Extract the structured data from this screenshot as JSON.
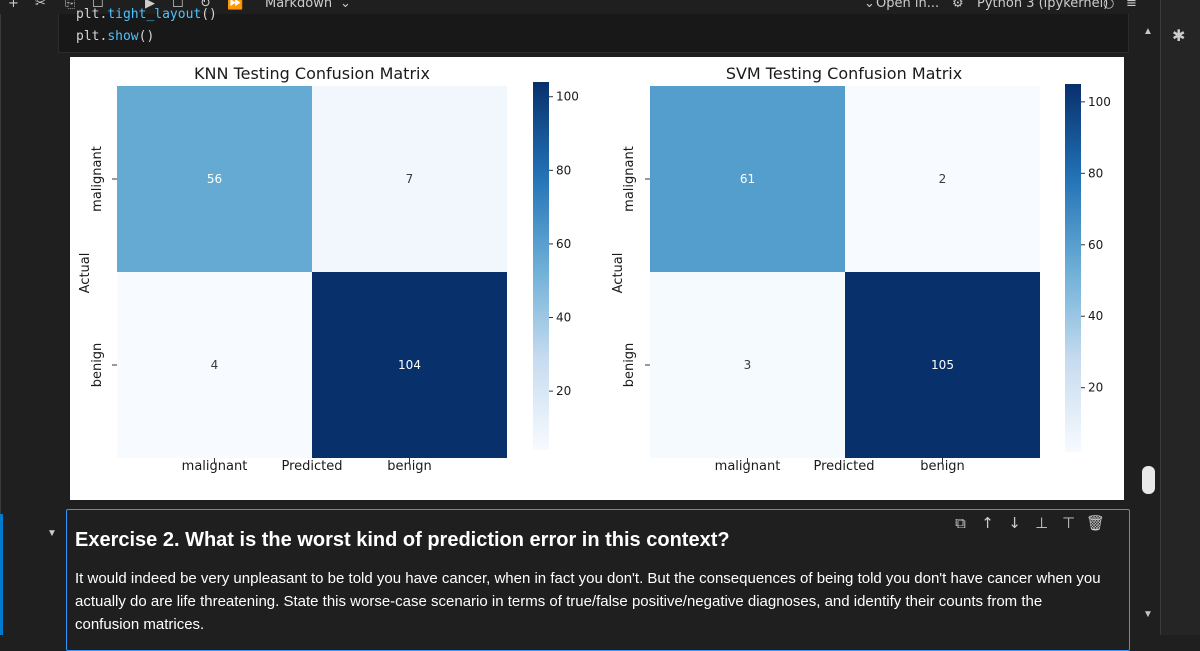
{
  "toolbar": {
    "plus_icon": "+",
    "cut_icon": "✂",
    "copy_icon": "⎘",
    "box_icon": "☐",
    "run_icon": "▶",
    "restart_icon": "↻",
    "fastforward_icon": "⏩",
    "cell_type": "Markdown",
    "cell_type_chevron": "⌄",
    "open_in": "Open in...",
    "kernel_name": "Python 3 (ipykernel)",
    "kernel_status_icon": "○",
    "settings_icon": "⚙",
    "menu_icon": "≡"
  },
  "code_cell": {
    "line_cut_prefix": "plt.",
    "line_cut_fn": "tight_layout",
    "line_cut_suffix": "()",
    "line2_prefix": "plt.",
    "line2_fn": "show",
    "line2_suffix": "()"
  },
  "chart_data": [
    {
      "type": "heatmap",
      "title": "KNN Testing Confusion Matrix",
      "xlabel": "Predicted",
      "ylabel": "Actual",
      "x_categories": [
        "malignant",
        "benign"
      ],
      "y_categories": [
        "malignant",
        "benign"
      ],
      "values": [
        [
          56,
          7
        ],
        [
          4,
          104
        ]
      ],
      "colormap": "Blues",
      "vmin": 4,
      "vmax": 104,
      "colorbar_ticks": [
        20,
        40,
        60,
        80,
        100
      ]
    },
    {
      "type": "heatmap",
      "title": "SVM Testing Confusion Matrix",
      "xlabel": "Predicted",
      "ylabel": "Actual",
      "x_categories": [
        "malignant",
        "benign"
      ],
      "y_categories": [
        "malignant",
        "benign"
      ],
      "values": [
        [
          61,
          2
        ],
        [
          3,
          105
        ]
      ],
      "colormap": "Blues",
      "vmin": 2,
      "vmax": 105,
      "colorbar_ticks": [
        20,
        40,
        60,
        80,
        100
      ]
    }
  ],
  "markdown_cell": {
    "title": "Exercise 2. What is the worst kind of prediction error in this context?",
    "body": "It would indeed be very unpleasant to be told you have cancer, when in fact you don't. But the consequences of being told you don't have cancer when you actually do are life threatening. State this worse-case scenario in terms of true/false positive/negative diagnoses, and identify their counts from the confusion matrices.",
    "actions": {
      "copy_icon": "⧉",
      "move_up_icon": "↑",
      "move_down_icon": "↓",
      "insert_above_icon": "⊥",
      "insert_below_icon": "⊤",
      "delete_icon": "🗑"
    },
    "collapse_icon": "▼"
  },
  "scrollbar": {
    "up_icon": "▲",
    "down_icon": "▼"
  },
  "side_panel": {
    "debug_icon": "✱"
  },
  "colors": {
    "accent": "#3794ff",
    "heat_low": "#f7fbff",
    "heat_high": "#08306b"
  }
}
